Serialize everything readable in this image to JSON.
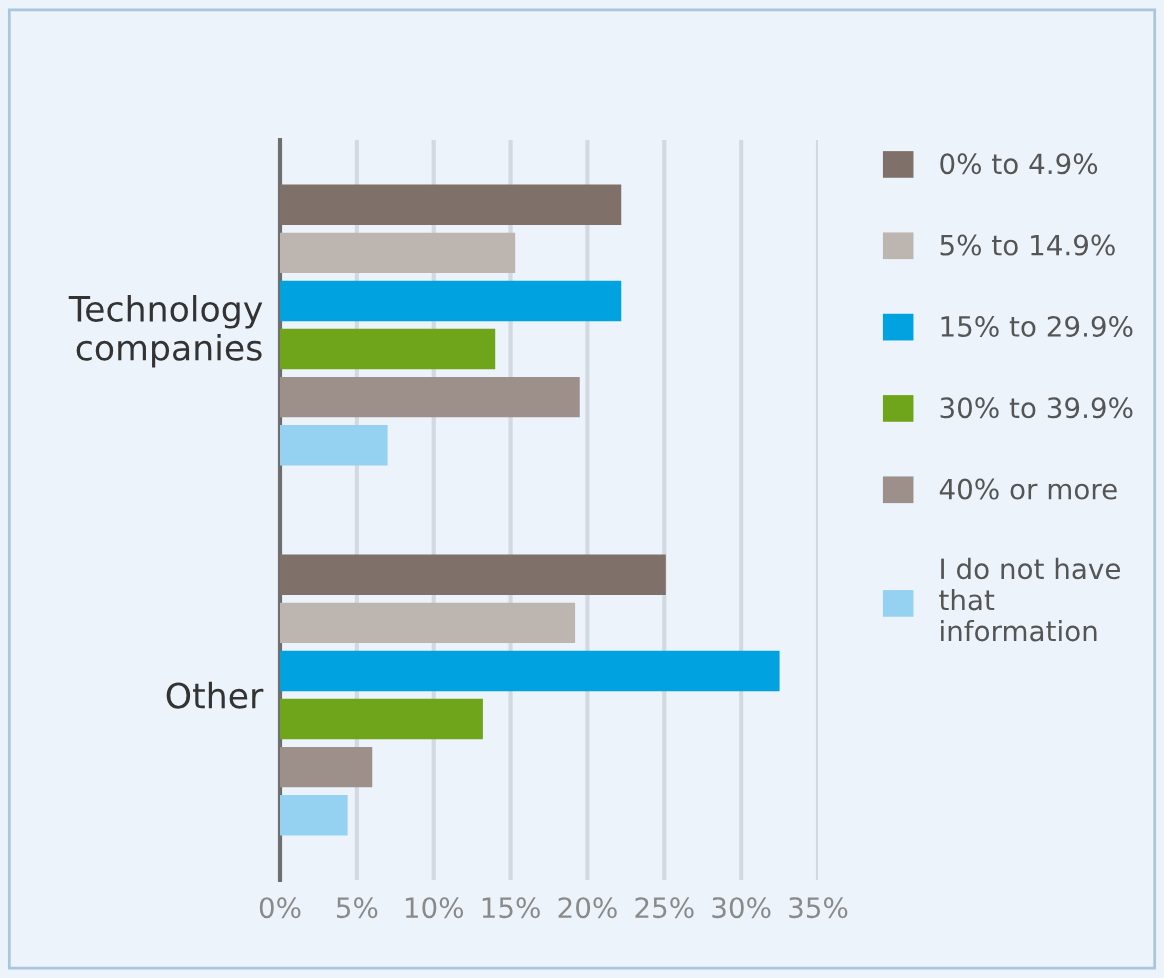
{
  "chart_data": {
    "type": "bar",
    "orientation": "horizontal",
    "categories": [
      "Technology\ncompanies",
      "Other"
    ],
    "series": [
      {
        "name": "0% to 4.9%",
        "color": "#7f7169",
        "values": [
          22.2,
          25.1
        ]
      },
      {
        "name": "5% to 14.9%",
        "color": "#bdb5b0",
        "values": [
          15.3,
          19.2
        ]
      },
      {
        "name": "15% to 29.9%",
        "color": "#00a2e0",
        "values": [
          22.2,
          32.5
        ]
      },
      {
        "name": "30% to 39.9%",
        "color": "#6fa51a",
        "values": [
          14.0,
          13.2
        ]
      },
      {
        "name": "40% or more",
        "color": "#9d8f89",
        "values": [
          19.5,
          6.0
        ]
      },
      {
        "name": "I do not have that information",
        "color": "#95d1f0",
        "values": [
          7.0,
          4.4
        ]
      }
    ],
    "xlim": [
      0,
      35
    ],
    "xticks": [
      {
        "value": 0,
        "label": "0%"
      },
      {
        "value": 5,
        "label": "5%"
      },
      {
        "value": 10,
        "label": "10%"
      },
      {
        "value": 15,
        "label": "15%"
      },
      {
        "value": 20,
        "label": "20%"
      },
      {
        "value": 25,
        "label": "25%"
      },
      {
        "value": 30,
        "label": "30%"
      },
      {
        "value": 35,
        "label": "35%"
      }
    ],
    "grid": "x",
    "legend": "right"
  }
}
